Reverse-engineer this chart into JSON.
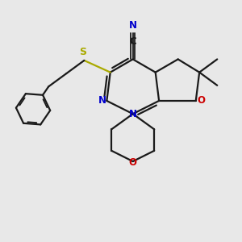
{
  "background_color": "#e8e8e8",
  "bond_color": "#1a1a1a",
  "n_color": "#0000cc",
  "o_color": "#cc0000",
  "s_color": "#aaaa00",
  "c_color": "#1a1a1a",
  "figsize": [
    3.0,
    3.0
  ],
  "dpi": 100,
  "xlim": [
    0,
    10
  ],
  "ylim": [
    0,
    10
  ]
}
